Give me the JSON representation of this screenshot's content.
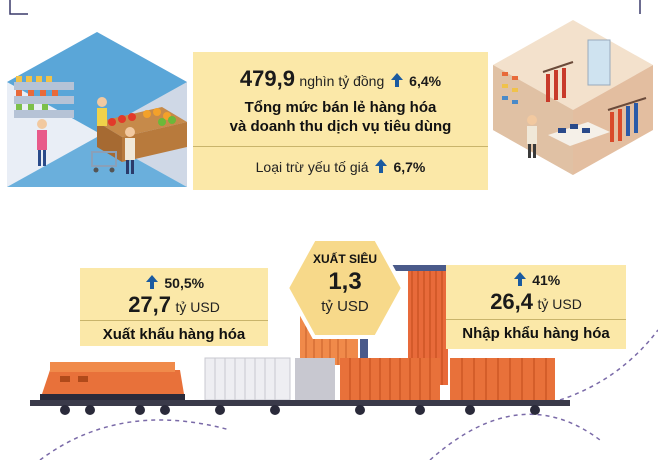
{
  "retail": {
    "value": "479,9",
    "unit": "nghìn tỷ đồng",
    "growth": "6,4%",
    "title_line1": "Tổng mức bán lẻ hàng hóa",
    "title_line2": "và doanh thu dịch vụ tiêu dùng",
    "excl_label": "Loại trừ yếu tố giá",
    "excl_growth": "6,7%"
  },
  "export": {
    "growth": "50,5%",
    "value": "27,7",
    "unit": "tỷ USD",
    "label": "Xuất khẩu hàng hóa"
  },
  "surplus": {
    "title": "XUẤT SIÊU",
    "value": "1,3",
    "unit": "tỷ USD"
  },
  "import": {
    "growth": "41%",
    "value": "26,4",
    "unit": "tỷ USD",
    "label": "Nhập khẩu hàng hóa"
  },
  "colors": {
    "box": "#fbe8a8",
    "accent_blue": "#1a5aa0",
    "hexagon": "#f7d98a",
    "container_orange": "#e8713a",
    "store_blue": "#5aa6d8"
  }
}
